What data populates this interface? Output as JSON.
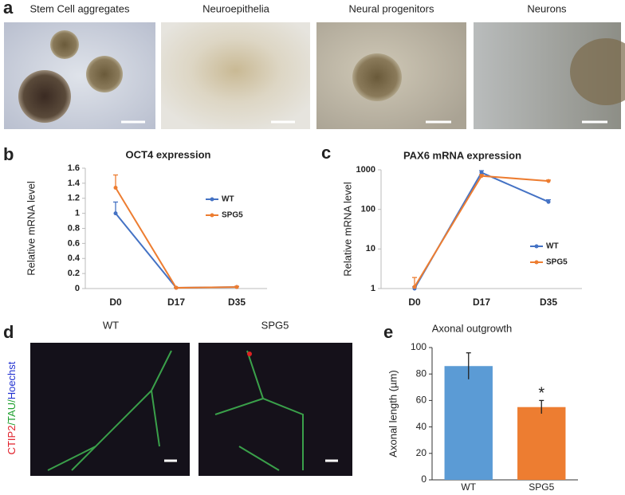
{
  "figure": {
    "panel_labels": [
      "a",
      "b",
      "c",
      "d",
      "e"
    ],
    "image_captions": [
      "Stem Cell aggregates",
      "Neuroepithelia",
      "Neural progenitors",
      "Neurons"
    ],
    "fluorescence_captions": [
      "WT",
      "SPG5"
    ],
    "stain_label_parts": [
      "CTIP2",
      "/TAU/",
      "Hoechst"
    ]
  },
  "chart_data": [
    {
      "type": "line",
      "title": "OCT4 expression",
      "y_label": "Relative mRNA level",
      "categories": [
        "D0",
        "D17",
        "D35"
      ],
      "ylim": [
        0,
        1.6
      ],
      "yticks": [
        0,
        0.2,
        0.4,
        0.6,
        0.8,
        1,
        1.2,
        1.4,
        1.6
      ],
      "log_scale": false,
      "series": [
        {
          "name": "WT",
          "color": "#4472c4",
          "values": [
            1.0,
            0.01,
            0.02
          ],
          "errors": [
            0.15,
            0.005,
            0.01
          ]
        },
        {
          "name": "SPG5",
          "color": "#ed7d31",
          "values": [
            1.34,
            0.01,
            0.02
          ],
          "errors": [
            0.17,
            0.005,
            0.01
          ]
        }
      ]
    },
    {
      "type": "line",
      "title": "PAX6 mRNA expression",
      "y_label": "Relative mRNA level",
      "categories": [
        "D0",
        "D17",
        "D35"
      ],
      "ylim": [
        1,
        1000
      ],
      "yticks": [
        1,
        10,
        100,
        1000
      ],
      "log_scale": true,
      "series": [
        {
          "name": "WT",
          "color": "#4472c4",
          "values": [
            1.0,
            850,
            155
          ],
          "errors": [
            0.1,
            100,
            20
          ]
        },
        {
          "name": "SPG5",
          "color": "#ed7d31",
          "values": [
            1.1,
            700,
            520
          ],
          "errors": [
            0.8,
            60,
            30
          ]
        }
      ]
    },
    {
      "type": "bar",
      "title": "Axonal outgrowth",
      "y_label": "Axonal length (µm)",
      "categories": [
        "WT",
        "SPG5"
      ],
      "values": [
        86,
        55
      ],
      "errors": [
        10,
        5
      ],
      "colors": [
        "#5b9bd5",
        "#ed7d31"
      ],
      "ylim": [
        0,
        100
      ],
      "yticks": [
        0,
        20,
        40,
        60,
        80,
        100
      ],
      "annotation": "*"
    }
  ]
}
